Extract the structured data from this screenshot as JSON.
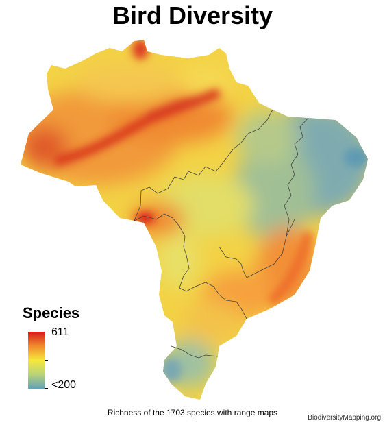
{
  "title": "Bird Diversity",
  "legend": {
    "title": "Species",
    "max_label": "611",
    "min_label": "<200",
    "colors": [
      "#d7191c",
      "#f08a2c",
      "#f6e83a",
      "#b9d27a",
      "#5fa3b6"
    ]
  },
  "caption": "Richness of the 1703 species with range maps",
  "credit": "BiodiversityMapping.org"
}
